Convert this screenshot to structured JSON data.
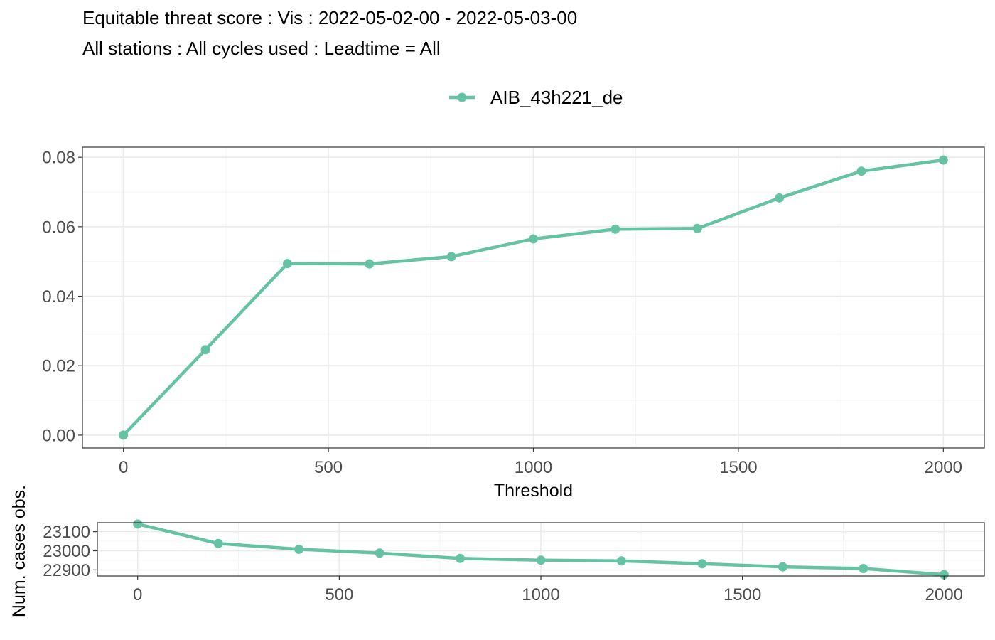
{
  "titles": {
    "line1": "Equitable threat score : Vis : 2022-05-02-00 - 2022-05-03-00",
    "line2": "All stations : All cycles used : Leadtime = All"
  },
  "chart_data": [
    {
      "type": "line",
      "x": [
        0,
        200,
        400,
        600,
        800,
        1000,
        1200,
        1400,
        1600,
        1800,
        2000
      ],
      "series": [
        {
          "name": "AIB_43h221_de",
          "color": "#66c2a5",
          "values": [
            0.0,
            0.0246,
            0.0494,
            0.0493,
            0.0514,
            0.0565,
            0.0593,
            0.0595,
            0.0683,
            0.076,
            0.0792
          ]
        }
      ],
      "xlabel": "Threshold",
      "ylabel": "",
      "xlim": [
        -100,
        2100
      ],
      "ylim": [
        -0.0037,
        0.0829
      ],
      "xticks": [
        0,
        500,
        1000,
        1500,
        2000
      ],
      "yticks": [
        0.0,
        0.02,
        0.04,
        0.06,
        0.08
      ],
      "ytick_labels": [
        "0.00",
        "0.02",
        "0.04",
        "0.06",
        "0.08"
      ],
      "legend": "top",
      "grid": true
    },
    {
      "type": "line",
      "x": [
        0,
        200,
        400,
        600,
        800,
        1000,
        1200,
        1400,
        1600,
        1800,
        2000
      ],
      "series": [
        {
          "name": "AIB_43h221_de",
          "color": "#66c2a5",
          "values": [
            23140,
            23038,
            23008,
            22988,
            22960,
            22951,
            22947,
            22932,
            22916,
            22907,
            22875
          ]
        }
      ],
      "xlabel": "",
      "ylabel": "Num. cases obs.",
      "xlim": [
        -100,
        2100
      ],
      "ylim": [
        22868,
        23147
      ],
      "xticks": [
        0,
        500,
        1000,
        1500,
        2000
      ],
      "yticks": [
        22900,
        23000,
        23100
      ],
      "legend": "none",
      "grid": true
    }
  ]
}
